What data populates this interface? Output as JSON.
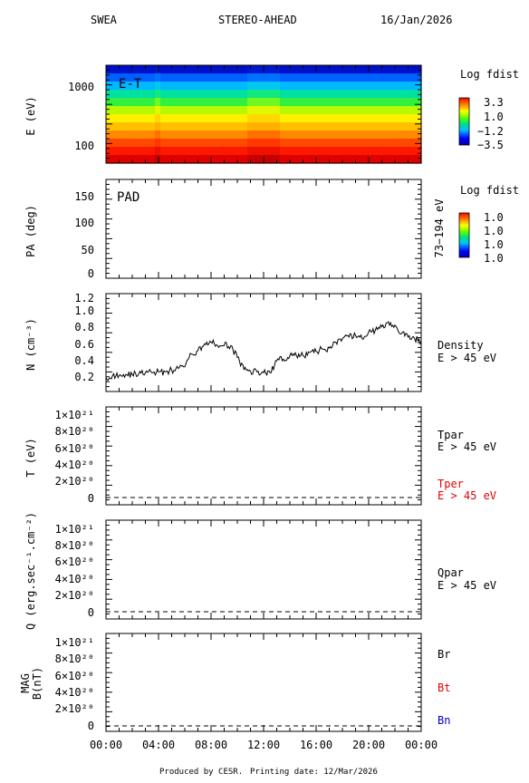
{
  "header": {
    "instrument": "SWEA",
    "spacecraft": "STEREO-AHEAD",
    "date": "16/Jan/2026"
  },
  "footer": {
    "produced": "Produced by CESR.",
    "printing_date": "Printing date: 12/Mar/2026"
  },
  "colors": {
    "red": "#e00000",
    "blue": "#0000c8",
    "trace": "#000000"
  },
  "chart_data": [
    {
      "type": "heatmap",
      "panel": "E-T",
      "ylabel": "E (eV)",
      "yticks": [
        "1000",
        "100"
      ],
      "ylim": [
        55,
        2200
      ],
      "yscale": "log",
      "colorbar": {
        "title": "Log fdist",
        "ticks": [
          "3.3",
          "1.0",
          "−1.2",
          "−3.5"
        ],
        "range": [
          -3.5,
          3.3
        ]
      }
    },
    {
      "type": "heatmap",
      "panel": "PAD",
      "ylabel": "PA (deg)",
      "yticks": [
        "150",
        "100",
        "50",
        "0"
      ],
      "ylim": [
        0,
        180
      ],
      "right_label": "73−194 eV",
      "colorbar": {
        "title": "Log fdist",
        "ticks": [
          "1.0",
          "1.0",
          "1.0",
          "1.0"
        ]
      }
    },
    {
      "type": "line",
      "panel": "N",
      "ylabel": "N (cm⁻³)",
      "yticks": [
        "1.2",
        "1.0",
        "0.8",
        "0.6",
        "0.4",
        "0.2"
      ],
      "ylim": [
        0.08,
        1.23
      ],
      "legend": [
        "Density",
        "E > 45 eV"
      ],
      "series": [
        {
          "x": [
            0,
            0.5,
            1,
            1.5,
            2,
            2.5,
            3,
            3.5,
            4,
            4.5,
            5,
            5.5,
            6,
            6.5,
            7,
            7.5,
            8,
            8.5,
            9,
            9.5,
            10,
            10.5,
            11,
            11.5,
            12,
            12.5,
            13,
            13.5,
            14,
            14.5,
            15,
            15.5,
            16,
            16.5,
            17,
            17.5,
            18,
            18.5,
            19,
            19.5,
            20,
            20.5,
            21,
            21.5,
            22,
            22.5,
            23,
            23.5,
            24
          ],
          "y": [
            0.24,
            0.27,
            0.27,
            0.28,
            0.28,
            0.29,
            0.3,
            0.3,
            0.31,
            0.31,
            0.33,
            0.35,
            0.37,
            0.52,
            0.56,
            0.64,
            0.66,
            0.62,
            0.62,
            0.62,
            0.48,
            0.34,
            0.32,
            0.31,
            0.3,
            0.3,
            0.44,
            0.46,
            0.5,
            0.5,
            0.5,
            0.54,
            0.55,
            0.58,
            0.59,
            0.66,
            0.7,
            0.72,
            0.74,
            0.7,
            0.78,
            0.8,
            0.84,
            0.9,
            0.86,
            0.76,
            0.72,
            0.7,
            0.67
          ]
        }
      ]
    },
    {
      "type": "line",
      "panel": "T",
      "ylabel": "T (eV)",
      "yticks": [
        "1×10²¹",
        "8×10²⁰",
        "6×10²⁰",
        "4×10²⁰",
        "2×10²⁰",
        "0"
      ],
      "legend": [
        "Tpar",
        "E > 45 eV",
        "Tper",
        "E > 45 eV"
      ],
      "series": [
        {
          "x": [
            0,
            24
          ],
          "y": [
            0,
            0
          ],
          "style": "dashed"
        }
      ]
    },
    {
      "type": "line",
      "panel": "Q",
      "ylabel": "Q (erg.sec⁻¹.cm⁻²)",
      "yticks": [
        "1×10²¹",
        "8×10²⁰",
        "6×10²⁰",
        "4×10²⁰",
        "2×10²⁰",
        "0"
      ],
      "legend": [
        "Qpar",
        "E > 45 eV"
      ],
      "series": [
        {
          "x": [
            0,
            24
          ],
          "y": [
            0,
            0
          ],
          "style": "dashed"
        }
      ]
    },
    {
      "type": "line",
      "panel": "MAG",
      "ylabel": "MAG",
      "ylabel2": "B(nT)",
      "yticks": [
        "1×10²¹",
        "8×10²⁰",
        "6×10²⁰",
        "4×10²⁰",
        "2×10²⁰",
        "0"
      ],
      "legend": [
        "Br",
        "Bt",
        "Bn"
      ],
      "series": [
        {
          "x": [
            0,
            24
          ],
          "y": [
            0,
            0
          ],
          "style": "dashed"
        }
      ]
    }
  ],
  "xaxis": {
    "ticks": [
      "00:00",
      "04:00",
      "08:00",
      "12:00",
      "16:00",
      "20:00",
      "00:00"
    ],
    "range_hours": [
      0,
      24
    ]
  }
}
